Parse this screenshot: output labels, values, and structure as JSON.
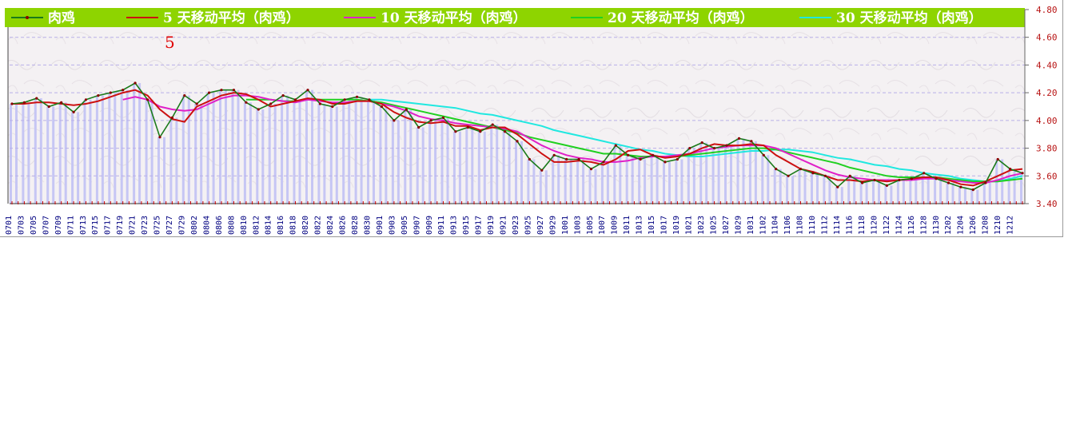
{
  "chart_data": {
    "type": "line",
    "title": "",
    "xlabel": "",
    "ylabel": "",
    "ylim": [
      3.4,
      4.8
    ],
    "yticks": [
      "4.80",
      "4.60",
      "4.40",
      "4.20",
      "4.00",
      "3.80",
      "3.60",
      "3.40"
    ],
    "grid": true,
    "legend_position": "top",
    "annotation": "5",
    "x_tick_labels": [
      "0701",
      "0703",
      "0705",
      "0707",
      "0709",
      "0711",
      "0713",
      "0715",
      "0717",
      "0719",
      "0721",
      "0723",
      "0725",
      "0727",
      "0729",
      "0802",
      "0804",
      "0806",
      "0808",
      "0810",
      "0812",
      "0814",
      "0816",
      "0818",
      "0820",
      "0822",
      "0824",
      "0826",
      "0828",
      "0830",
      "0901",
      "0903",
      "0905",
      "0907",
      "0909",
      "0911",
      "0913",
      "0915",
      "0917",
      "0919",
      "0921",
      "0923",
      "0925",
      "0927",
      "0929",
      "1001",
      "1003",
      "1005",
      "1007",
      "1009",
      "1011",
      "1013",
      "1015",
      "1017",
      "1019",
      "1021",
      "1023",
      "1025",
      "1027",
      "1029",
      "1031",
      "1102",
      "1104",
      "1106",
      "1108",
      "1110",
      "1112",
      "1114",
      "1116",
      "1118",
      "1120",
      "1122",
      "1124",
      "1126",
      "1128",
      "1130",
      "1202",
      "1204",
      "1206",
      "1208",
      "1210",
      "1212"
    ],
    "series": [
      {
        "name": "肉鸡",
        "color": "#1a7a1a",
        "marker_color": "#8b0000",
        "values": [
          4.12,
          4.13,
          4.16,
          4.1,
          4.13,
          4.06,
          4.15,
          4.18,
          4.2,
          4.22,
          4.27,
          4.15,
          3.88,
          4.02,
          4.18,
          4.12,
          4.2,
          4.22,
          4.22,
          4.13,
          4.08,
          4.12,
          4.18,
          4.15,
          4.22,
          4.12,
          4.1,
          4.15,
          4.17,
          4.15,
          4.1,
          4.0,
          4.08,
          3.95,
          4.0,
          4.02,
          3.92,
          3.95,
          3.92,
          3.97,
          3.92,
          3.85,
          3.72,
          3.64,
          3.75,
          3.72,
          3.72,
          3.65,
          3.7,
          3.82,
          3.75,
          3.72,
          3.75,
          3.7,
          3.72,
          3.8,
          3.84,
          3.8,
          3.82,
          3.87,
          3.85,
          3.75,
          3.65,
          3.6,
          3.65,
          3.62,
          3.6,
          3.52,
          3.6,
          3.55,
          3.57,
          3.53,
          3.57,
          3.58,
          3.62,
          3.58,
          3.55,
          3.52,
          3.5,
          3.55,
          3.72,
          3.65,
          3.62
        ]
      },
      {
        "name": "5 天移动平均（肉鸡）",
        "color": "#cc1010",
        "values": [
          4.12,
          4.12,
          4.13,
          4.13,
          4.12,
          4.11,
          4.12,
          4.14,
          4.17,
          4.2,
          4.22,
          4.18,
          4.08,
          4.01,
          3.99,
          4.1,
          4.14,
          4.18,
          4.2,
          4.19,
          4.15,
          4.1,
          4.12,
          4.14,
          4.16,
          4.15,
          4.12,
          4.12,
          4.14,
          4.14,
          4.12,
          4.06,
          4.02,
          3.99,
          3.98,
          3.99,
          3.96,
          3.96,
          3.93,
          3.95,
          3.95,
          3.9,
          3.83,
          3.76,
          3.7,
          3.7,
          3.71,
          3.7,
          3.68,
          3.72,
          3.78,
          3.79,
          3.75,
          3.73,
          3.74,
          3.76,
          3.8,
          3.83,
          3.82,
          3.82,
          3.83,
          3.82,
          3.75,
          3.7,
          3.65,
          3.63,
          3.6,
          3.57,
          3.57,
          3.56,
          3.57,
          3.56,
          3.57,
          3.58,
          3.59,
          3.59,
          3.57,
          3.54,
          3.53,
          3.56,
          3.6,
          3.64,
          3.65
        ]
      },
      {
        "name": "10 天移动平均（肉鸡）",
        "color": "#e020c8",
        "values": [
          null,
          null,
          null,
          null,
          null,
          null,
          null,
          null,
          null,
          4.15,
          4.17,
          4.15,
          4.1,
          4.08,
          4.07,
          4.08,
          4.12,
          4.16,
          4.18,
          4.18,
          4.17,
          4.15,
          4.14,
          4.13,
          4.15,
          4.14,
          4.13,
          4.13,
          4.14,
          4.14,
          4.12,
          4.1,
          4.07,
          4.03,
          4.01,
          4.0,
          3.98,
          3.97,
          3.96,
          3.95,
          3.94,
          3.92,
          3.87,
          3.82,
          3.78,
          3.75,
          3.73,
          3.72,
          3.7,
          3.7,
          3.71,
          3.73,
          3.74,
          3.74,
          3.75,
          3.76,
          3.78,
          3.8,
          3.81,
          3.82,
          3.82,
          3.82,
          3.8,
          3.76,
          3.72,
          3.68,
          3.64,
          3.61,
          3.59,
          3.58,
          3.57,
          3.57,
          3.57,
          3.57,
          3.58,
          3.58,
          3.57,
          3.56,
          3.55,
          3.55,
          3.57,
          3.6,
          3.62
        ]
      },
      {
        "name": "20 天移动平均（肉鸡）",
        "color": "#20d020",
        "values": [
          null,
          null,
          null,
          null,
          null,
          null,
          null,
          null,
          null,
          null,
          null,
          null,
          null,
          null,
          null,
          null,
          null,
          null,
          null,
          4.15,
          4.15,
          4.15,
          4.14,
          4.14,
          4.15,
          4.15,
          4.15,
          4.15,
          4.15,
          4.14,
          4.13,
          4.11,
          4.09,
          4.07,
          4.05,
          4.03,
          4.01,
          3.99,
          3.97,
          3.95,
          3.93,
          3.91,
          3.88,
          3.86,
          3.84,
          3.82,
          3.8,
          3.78,
          3.76,
          3.76,
          3.75,
          3.74,
          3.74,
          3.74,
          3.74,
          3.75,
          3.76,
          3.77,
          3.78,
          3.79,
          3.8,
          3.8,
          3.79,
          3.77,
          3.75,
          3.73,
          3.71,
          3.69,
          3.66,
          3.64,
          3.62,
          3.6,
          3.59,
          3.59,
          3.59,
          3.59,
          3.58,
          3.57,
          3.56,
          3.56,
          3.56,
          3.57,
          3.58
        ]
      },
      {
        "name": "30 天移动平均（肉鸡）",
        "color": "#20e8e0",
        "values": [
          null,
          null,
          null,
          null,
          null,
          null,
          null,
          null,
          null,
          null,
          null,
          null,
          null,
          null,
          null,
          null,
          null,
          null,
          null,
          null,
          null,
          null,
          null,
          null,
          null,
          null,
          null,
          null,
          null,
          4.15,
          4.15,
          4.14,
          4.13,
          4.12,
          4.11,
          4.1,
          4.09,
          4.07,
          4.05,
          4.04,
          4.02,
          4.0,
          3.98,
          3.96,
          3.93,
          3.91,
          3.89,
          3.87,
          3.85,
          3.83,
          3.81,
          3.79,
          3.78,
          3.76,
          3.75,
          3.74,
          3.74,
          3.75,
          3.76,
          3.77,
          3.78,
          3.78,
          3.79,
          3.79,
          3.78,
          3.77,
          3.75,
          3.73,
          3.72,
          3.7,
          3.68,
          3.67,
          3.65,
          3.64,
          3.62,
          3.61,
          3.6,
          3.58,
          3.57,
          3.56,
          3.56,
          3.58,
          3.6
        ]
      }
    ]
  }
}
